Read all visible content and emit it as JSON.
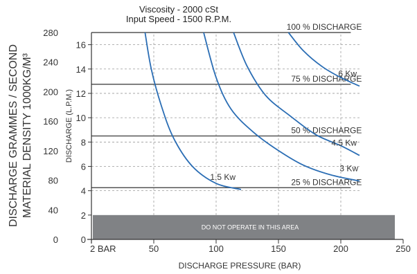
{
  "chart_data": {
    "type": "line",
    "title": "Viscosity - 2000 cSt",
    "subtitle": "Input Speed - 1500 R.P.M.",
    "xlabel": "DISCHARGE PRESSURE (BAR)",
    "ylabel": "DISCHARGE (L.P.M.)",
    "ylabel_outer_1": "DISCHARGE GRAMMES / SECOND",
    "ylabel_outer_2": "MATERIAL DENSITY 1000KG/M³",
    "xlim": [
      0,
      250
    ],
    "ylim": [
      0,
      17
    ],
    "x_ticks": [
      {
        "value": 2,
        "label": "2 BAR"
      },
      {
        "value": 50,
        "label": "50"
      },
      {
        "value": 100,
        "label": "100"
      },
      {
        "value": 150,
        "label": "150"
      },
      {
        "value": 200,
        "label": "200"
      },
      {
        "value": 250,
        "label": "250"
      }
    ],
    "y_ticks": [
      {
        "value": 0,
        "label": "0"
      },
      {
        "value": 2,
        "label": "2"
      },
      {
        "value": 4,
        "label": "4"
      },
      {
        "value": 6,
        "label": "6"
      },
      {
        "value": 8,
        "label": "8"
      },
      {
        "value": 10,
        "label": "10"
      },
      {
        "value": 12,
        "label": "12"
      },
      {
        "value": 14,
        "label": "14"
      },
      {
        "value": 16,
        "label": "16"
      }
    ],
    "outer_ticks": [
      {
        "value": 0,
        "label": "0"
      },
      {
        "value": 40,
        "label": "40"
      },
      {
        "value": 80,
        "label": "80"
      },
      {
        "value": 120,
        "label": "120"
      },
      {
        "value": 160,
        "label": "160"
      },
      {
        "value": 200,
        "label": "200"
      },
      {
        "value": 240,
        "label": "240"
      },
      {
        "value": 280,
        "label": "280"
      }
    ],
    "outer_range": [
      0,
      280
    ],
    "grid": "dashed",
    "no_go_zone": {
      "y_max": 2,
      "label": "DO NOT OPERATE IN THIS AREA",
      "color": "#808285"
    },
    "discharge_lines": [
      {
        "label": "100 % DISCHARGE",
        "y": 17,
        "x_end": 208
      },
      {
        "label": "75 % DISCHARGE",
        "y": 12.75,
        "x_end": 208
      },
      {
        "label": "50 % DISCHARGE",
        "y": 8.5,
        "x_end": 208
      },
      {
        "label": "25 % DISCHARGE",
        "y": 4.25,
        "x_end": 208
      }
    ],
    "series": [
      {
        "name": "1.5 Kw",
        "points": [
          [
            43,
            17
          ],
          [
            48,
            14
          ],
          [
            56,
            11
          ],
          [
            66,
            8.3
          ],
          [
            81,
            6
          ],
          [
            100,
            4.6
          ],
          [
            120,
            4.1
          ]
        ]
      },
      {
        "name": "3 Kw",
        "points": [
          [
            90,
            17
          ],
          [
            100,
            13.3
          ],
          [
            112,
            10.7
          ],
          [
            130,
            8.8
          ],
          [
            150,
            7.3
          ],
          [
            170,
            6.1
          ],
          [
            192,
            5.3
          ],
          [
            215,
            4.8
          ]
        ]
      },
      {
        "name": "4.5 Kw",
        "points": [
          [
            114,
            17
          ],
          [
            125,
            14.2
          ],
          [
            140,
            11.8
          ],
          [
            160,
            10.1
          ],
          [
            180,
            8.6
          ],
          [
            200,
            7.7
          ],
          [
            215,
            6.9
          ]
        ]
      },
      {
        "name": "6 Kw",
        "points": [
          [
            158,
            17
          ],
          [
            170,
            15.5
          ],
          [
            185,
            14.2
          ],
          [
            200,
            13.3
          ],
          [
            215,
            12.6
          ]
        ]
      }
    ],
    "line_color": "#2a6db4",
    "axis_color": "#333333"
  }
}
